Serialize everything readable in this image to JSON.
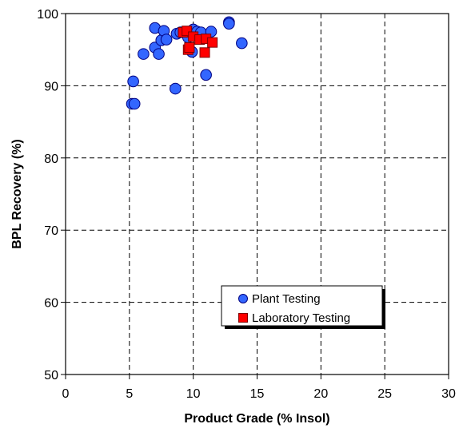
{
  "chart_data": {
    "type": "scatter",
    "xlabel": "Product Grade (% Insol)",
    "ylabel": "BPL Recovery (%)",
    "xlim": [
      0,
      30
    ],
    "ylim": [
      50,
      100
    ],
    "xticks": [
      0,
      5,
      10,
      15,
      20,
      25,
      30
    ],
    "yticks": [
      50,
      60,
      70,
      80,
      90,
      100
    ],
    "xtick_labels": [
      "0",
      "5",
      "10",
      "15",
      "20",
      "25",
      "30"
    ],
    "ytick_labels": [
      "50",
      "60",
      "70",
      "80",
      "90",
      "100"
    ],
    "grid": true,
    "legend_position": "lower-right",
    "series": [
      {
        "name": "Plant Testing",
        "marker": "circle",
        "color": "#3366ff",
        "points": [
          {
            "x": 5.2,
            "y": 87.5
          },
          {
            "x": 5.4,
            "y": 87.5
          },
          {
            "x": 5.3,
            "y": 90.6
          },
          {
            "x": 6.1,
            "y": 94.4
          },
          {
            "x": 7.0,
            "y": 98.0
          },
          {
            "x": 7.0,
            "y": 95.3
          },
          {
            "x": 7.3,
            "y": 94.4
          },
          {
            "x": 7.5,
            "y": 96.3
          },
          {
            "x": 7.7,
            "y": 97.6
          },
          {
            "x": 7.9,
            "y": 96.4
          },
          {
            "x": 8.6,
            "y": 89.6
          },
          {
            "x": 8.7,
            "y": 97.2
          },
          {
            "x": 9.0,
            "y": 97.4
          },
          {
            "x": 9.6,
            "y": 96.7
          },
          {
            "x": 9.9,
            "y": 94.7
          },
          {
            "x": 10.0,
            "y": 97.8
          },
          {
            "x": 10.3,
            "y": 97.5
          },
          {
            "x": 10.6,
            "y": 97.4
          },
          {
            "x": 11.0,
            "y": 91.5
          },
          {
            "x": 11.4,
            "y": 97.5
          },
          {
            "x": 12.8,
            "y": 98.8
          },
          {
            "x": 12.8,
            "y": 98.6
          },
          {
            "x": 13.8,
            "y": 95.9
          }
        ]
      },
      {
        "name": "Laboratory Testing",
        "marker": "square",
        "color": "#ff0000",
        "points": [
          {
            "x": 9.2,
            "y": 97.4
          },
          {
            "x": 9.5,
            "y": 97.6
          },
          {
            "x": 9.6,
            "y": 95.0
          },
          {
            "x": 9.7,
            "y": 95.3
          },
          {
            "x": 10.0,
            "y": 96.8
          },
          {
            "x": 10.5,
            "y": 96.4
          },
          {
            "x": 10.9,
            "y": 94.6
          },
          {
            "x": 11.0,
            "y": 96.5
          },
          {
            "x": 11.5,
            "y": 96.0
          }
        ]
      }
    ]
  }
}
